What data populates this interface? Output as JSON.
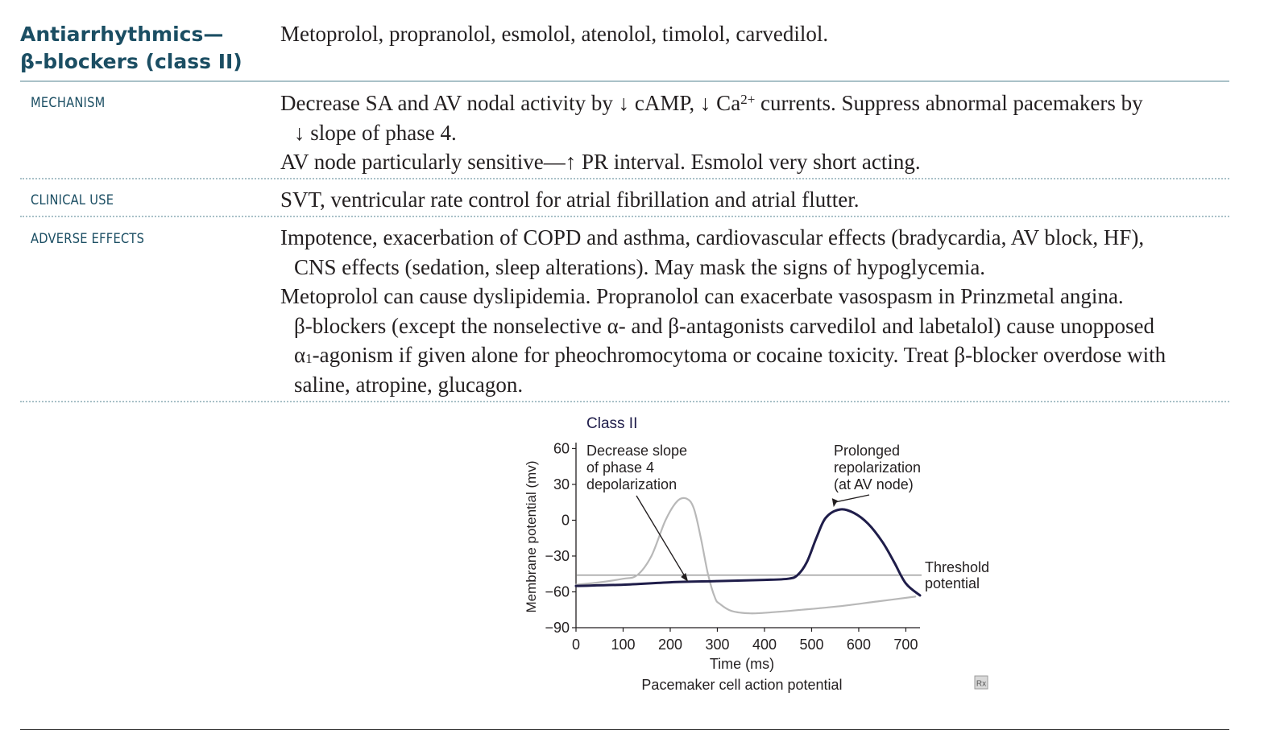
{
  "header": {
    "title_line1": "Antiarrhythmics—",
    "title_line2": "β-blockers (class II)",
    "drugs": "Metoprolol, propranolol, esmolol, atenolol, timolol, carvedilol."
  },
  "sections": {
    "mechanism": {
      "label": "MECHANISM",
      "l1a": "Decrease SA and AV nodal activity by ↓ cAMP, ↓ Ca",
      "l1sup": "2+",
      "l1b": " currents. Suppress abnormal pacemakers by",
      "l2": "↓ slope of phase 4.",
      "l3": "AV node particularly sensitive—↑ PR interval. Esmolol very short acting."
    },
    "clinical_use": {
      "label": "CLINICAL USE",
      "l1": "SVT, ventricular rate control for atrial fibrillation and atrial flutter."
    },
    "adverse_effects": {
      "label": "ADVERSE EFFECTS",
      "l1": "Impotence, exacerbation of COPD and asthma, cardiovascular effects (bradycardia, AV block, HF),",
      "l2": "CNS effects (sedation, sleep alterations). May mask the signs of hypoglycemia.",
      "l3": "Metoprolol can cause dyslipidemia. Propranolol can exacerbate vasospasm in Prinzmetal angina.",
      "l4": "β-blockers (except the nonselective α- and β-antagonists carvedilol and labetalol) cause unopposed",
      "l5a": "α",
      "l5sub": "1",
      "l5b": "-agonism if given alone for pheochromocytoma or cocaine toxicity. Treat β-blocker overdose with",
      "l6": "saline, atropine, glucagon."
    }
  },
  "chart_data": {
    "type": "line",
    "title": "Class II",
    "caption": "Pacemaker cell action potential",
    "xlabel": "Time (ms)",
    "ylabel": "Membrane potential (mv)",
    "xlim": [
      0,
      730
    ],
    "ylim": [
      -90,
      65
    ],
    "x_ticks": [
      0,
      100,
      200,
      300,
      400,
      500,
      600,
      700
    ],
    "y_ticks": [
      60,
      30,
      0,
      -30,
      -60,
      -90
    ],
    "threshold": {
      "y": -46,
      "label_line1": "Threshold",
      "label_line2": "potential"
    },
    "series": [
      {
        "color": "#b8b8b8",
        "x": [
          0,
          50,
          100,
          130,
          160,
          190,
          215,
          235,
          250,
          265,
          280,
          295,
          305,
          330,
          370,
          420,
          480,
          560,
          640,
          720
        ],
        "y": [
          -54,
          -52,
          -49,
          -46,
          -30,
          0,
          16,
          18,
          10,
          -15,
          -45,
          -65,
          -70,
          -76,
          -78,
          -77,
          -75,
          -72,
          -68,
          -64
        ]
      },
      {
        "color": "#1f1d4a",
        "x": [
          0,
          100,
          200,
          300,
          400,
          450,
          470,
          490,
          510,
          530,
          560,
          590,
          620,
          650,
          675,
          700,
          730
        ],
        "y": [
          -55,
          -54,
          -52,
          -51,
          -50,
          -49,
          -46,
          -35,
          -15,
          2,
          9,
          6,
          -3,
          -18,
          -35,
          -53,
          -63
        ]
      }
    ],
    "annotations": {
      "left": [
        "Decrease slope",
        "of phase 4",
        "depolarization"
      ],
      "right": [
        "Prolonged",
        "repolarization",
        "(at AV node)"
      ]
    },
    "watermark": "Rx"
  }
}
